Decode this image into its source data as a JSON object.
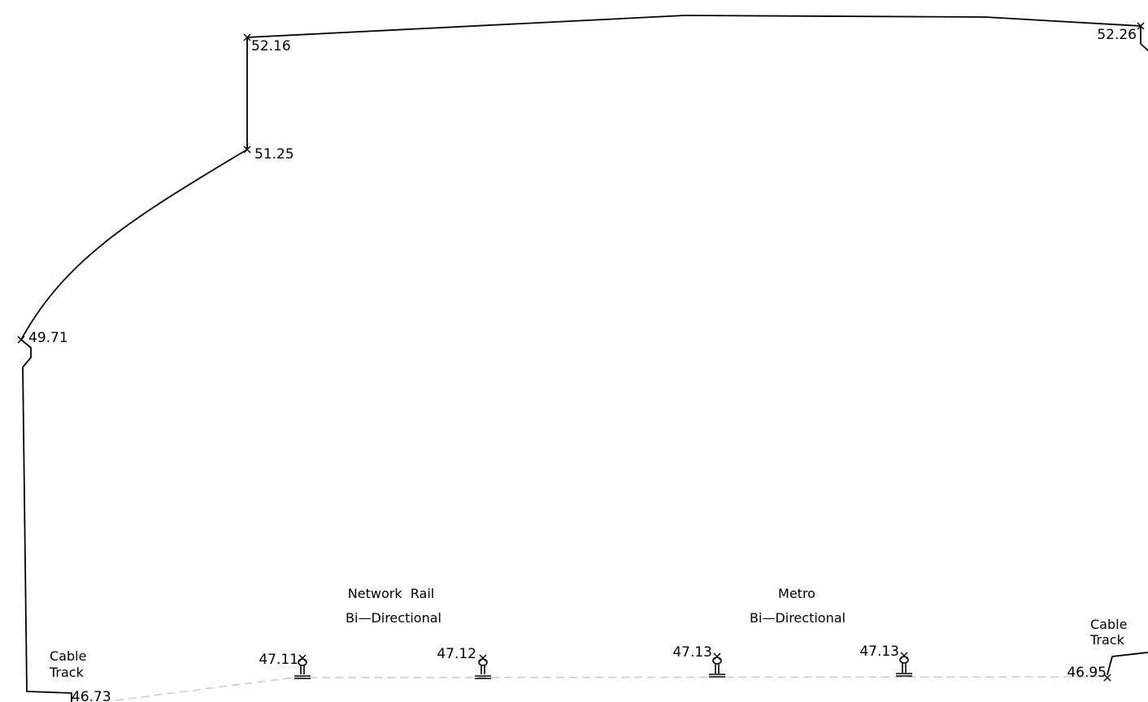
{
  "levels": {
    "wall_top_left": "52.16",
    "wall_shoulder_left": "51.25",
    "wall_mid_left": "49.71",
    "wall_top_right": "52.26",
    "cable_track_left": "46.73",
    "cable_track_right": "46.95",
    "rail_1": "47.11",
    "rail_2": "47.12",
    "rail_3": "47.13",
    "rail_4": "47.13"
  },
  "labels": {
    "network_rail": "Network  Rail",
    "network_rail_direction": "Bi—Directional",
    "metro": "Metro",
    "metro_direction": "Bi—Directional",
    "cable_track_left_line1": "Cable",
    "cable_track_left_line2": "Track",
    "cable_track_right_line1": "Cable",
    "cable_track_right_line2": "Track"
  }
}
